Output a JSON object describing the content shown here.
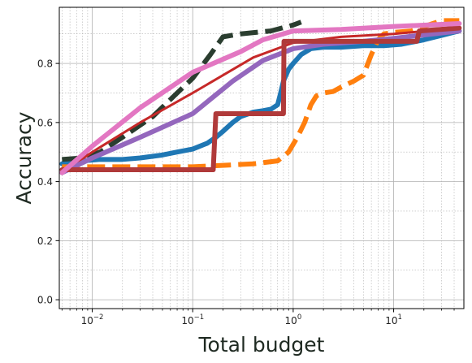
{
  "chart_data": {
    "type": "line",
    "title": "",
    "xlabel": "Total budget",
    "ylabel": "Accuracy",
    "xscale": "log",
    "xlim": [
      0.0047,
      50
    ],
    "ylim": [
      -0.03,
      0.99
    ],
    "grid": true,
    "legend": "none",
    "x_ticks": [
      {
        "value": 0.01,
        "base": "10",
        "exp": "−2"
      },
      {
        "value": 0.1,
        "base": "10",
        "exp": "−1"
      },
      {
        "value": 1,
        "base": "10",
        "exp": "0"
      },
      {
        "value": 10,
        "base": "10",
        "exp": "1"
      }
    ],
    "y_ticks": [
      {
        "value": 0.0,
        "label": "0.0"
      },
      {
        "value": 0.2,
        "label": "0.2"
      },
      {
        "value": 0.4,
        "label": "0.4"
      },
      {
        "value": 0.6,
        "label": "0.6"
      },
      {
        "value": 0.8,
        "label": "0.8"
      }
    ],
    "series": [
      {
        "color": "#1f77b4",
        "dash": "solid",
        "width": 6,
        "points": [
          [
            0.005,
            0.46
          ],
          [
            0.008,
            0.47
          ],
          [
            0.012,
            0.475
          ],
          [
            0.02,
            0.475
          ],
          [
            0.03,
            0.48
          ],
          [
            0.05,
            0.49
          ],
          [
            0.07,
            0.5
          ],
          [
            0.1,
            0.51
          ],
          [
            0.14,
            0.53
          ],
          [
            0.17,
            0.55
          ],
          [
            0.2,
            0.57
          ],
          [
            0.25,
            0.6
          ],
          [
            0.3,
            0.62
          ],
          [
            0.4,
            0.635
          ],
          [
            0.5,
            0.64
          ],
          [
            0.6,
            0.645
          ],
          [
            0.7,
            0.66
          ],
          [
            0.75,
            0.7
          ],
          [
            0.8,
            0.74
          ],
          [
            0.9,
            0.78
          ],
          [
            1.0,
            0.8
          ],
          [
            1.2,
            0.83
          ],
          [
            1.5,
            0.85
          ],
          [
            2,
            0.855
          ],
          [
            3,
            0.855
          ],
          [
            5,
            0.86
          ],
          [
            8,
            0.86
          ],
          [
            12,
            0.865
          ],
          [
            20,
            0.88
          ],
          [
            30,
            0.895
          ],
          [
            45,
            0.91
          ]
        ]
      },
      {
        "color": "#ff7f0e",
        "dash": "dashed",
        "width": 6,
        "points": [
          [
            0.005,
            0.45
          ],
          [
            0.05,
            0.45
          ],
          [
            0.1,
            0.45
          ],
          [
            0.2,
            0.455
          ],
          [
            0.4,
            0.46
          ],
          [
            0.7,
            0.47
          ],
          [
            0.9,
            0.5
          ],
          [
            1.1,
            0.55
          ],
          [
            1.3,
            0.6
          ],
          [
            1.5,
            0.66
          ],
          [
            1.7,
            0.69
          ],
          [
            2,
            0.7
          ],
          [
            2.5,
            0.705
          ],
          [
            3,
            0.72
          ],
          [
            4,
            0.74
          ],
          [
            5,
            0.76
          ],
          [
            6,
            0.83
          ],
          [
            7,
            0.88
          ],
          [
            8,
            0.9
          ],
          [
            10,
            0.905
          ],
          [
            15,
            0.91
          ],
          [
            20,
            0.925
          ],
          [
            30,
            0.945
          ],
          [
            45,
            0.945
          ]
        ]
      },
      {
        "color": "#2a3d2f",
        "dash": "dashed",
        "width": 6,
        "points": [
          [
            0.005,
            0.475
          ],
          [
            0.008,
            0.48
          ],
          [
            0.012,
            0.5
          ],
          [
            0.02,
            0.55
          ],
          [
            0.04,
            0.62
          ],
          [
            0.07,
            0.7
          ],
          [
            0.1,
            0.75
          ],
          [
            0.15,
            0.83
          ],
          [
            0.2,
            0.89
          ],
          [
            0.3,
            0.9
          ],
          [
            0.6,
            0.91
          ],
          [
            1.0,
            0.93
          ],
          [
            1.2,
            0.94
          ]
        ]
      },
      {
        "color": "#c62828",
        "dash": "solid",
        "width": 3,
        "points": [
          [
            0.005,
            0.43
          ],
          [
            0.01,
            0.5
          ],
          [
            0.03,
            0.6
          ],
          [
            0.1,
            0.7
          ],
          [
            0.4,
            0.82
          ],
          [
            1.0,
            0.87
          ],
          [
            3,
            0.89
          ],
          [
            10,
            0.9
          ],
          [
            45,
            0.92
          ]
        ]
      },
      {
        "color": "#9467bd",
        "dash": "solid",
        "width": 6,
        "points": [
          [
            0.005,
            0.43
          ],
          [
            0.01,
            0.48
          ],
          [
            0.03,
            0.55
          ],
          [
            0.1,
            0.63
          ],
          [
            0.25,
            0.74
          ],
          [
            0.5,
            0.81
          ],
          [
            1.0,
            0.85
          ],
          [
            2,
            0.865
          ],
          [
            5,
            0.875
          ],
          [
            10,
            0.885
          ],
          [
            45,
            0.91
          ]
        ]
      },
      {
        "color": "#b03a3a",
        "dash": "solid",
        "width": 6,
        "points": [
          [
            0.005,
            0.44
          ],
          [
            0.03,
            0.44
          ],
          [
            0.1,
            0.44
          ],
          [
            0.16,
            0.44
          ],
          [
            0.17,
            0.63
          ],
          [
            0.5,
            0.63
          ],
          [
            0.8,
            0.63
          ],
          [
            0.81,
            0.875
          ],
          [
            2,
            0.875
          ],
          [
            5,
            0.875
          ],
          [
            17,
            0.875
          ],
          [
            18,
            0.91
          ],
          [
            45,
            0.92
          ]
        ]
      },
      {
        "color": "#e377c2",
        "dash": "solid",
        "width": 6,
        "points": [
          [
            0.005,
            0.43
          ],
          [
            0.01,
            0.52
          ],
          [
            0.03,
            0.65
          ],
          [
            0.1,
            0.77
          ],
          [
            0.3,
            0.84
          ],
          [
            0.5,
            0.88
          ],
          [
            1.0,
            0.91
          ],
          [
            3,
            0.915
          ],
          [
            10,
            0.925
          ],
          [
            45,
            0.935
          ]
        ]
      }
    ]
  }
}
